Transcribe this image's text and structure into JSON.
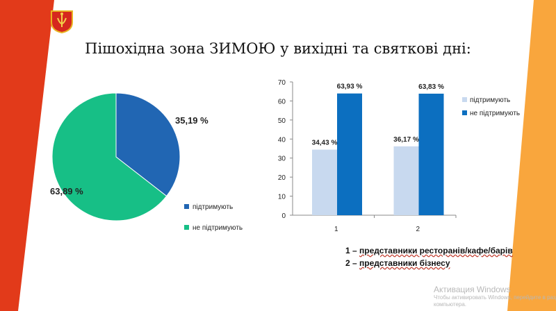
{
  "slide": {
    "title": "Пішохідна зона ЗИМОЮ у вихідні та святкові дні:",
    "captions": [
      {
        "num": "1 –",
        "text": "представники ресторанів/кафе/барів"
      },
      {
        "num": "2 –",
        "text": "представники бізнесу"
      }
    ],
    "watermark": {
      "line1": "Активация Windows",
      "line2": "Чтобы активировать Windows, перейдите в раздел «Параметры»",
      "line3": "компьютера."
    },
    "colors": {
      "left_band": "#e23a1a",
      "right_band": "#f9a63d"
    }
  },
  "chart_data": [
    {
      "type": "pie",
      "labels": [
        "підтримують",
        "не підтримують"
      ],
      "values": [
        35.19,
        63.89
      ],
      "data_labels": [
        "35,19 %",
        "63,89 %"
      ],
      "colors": [
        "#2166b3",
        "#17bf86"
      ],
      "legend": "bottom-right"
    },
    {
      "type": "bar",
      "categories": [
        "1",
        "2"
      ],
      "series": [
        {
          "name": "підтримують",
          "values": [
            34.43,
            36.17
          ],
          "labels": [
            "34,43 %",
            "36,17 %"
          ],
          "color": "#c8d9ef"
        },
        {
          "name": "не підтримують",
          "values": [
            63.93,
            63.83
          ],
          "labels": [
            "63,93 %",
            "63,83 %"
          ],
          "color": "#0c6fc0"
        }
      ],
      "ylim": [
        0,
        70
      ],
      "yticks": [
        0,
        10,
        20,
        30,
        40,
        50,
        60,
        70
      ],
      "legend": "right",
      "grid": false
    }
  ]
}
